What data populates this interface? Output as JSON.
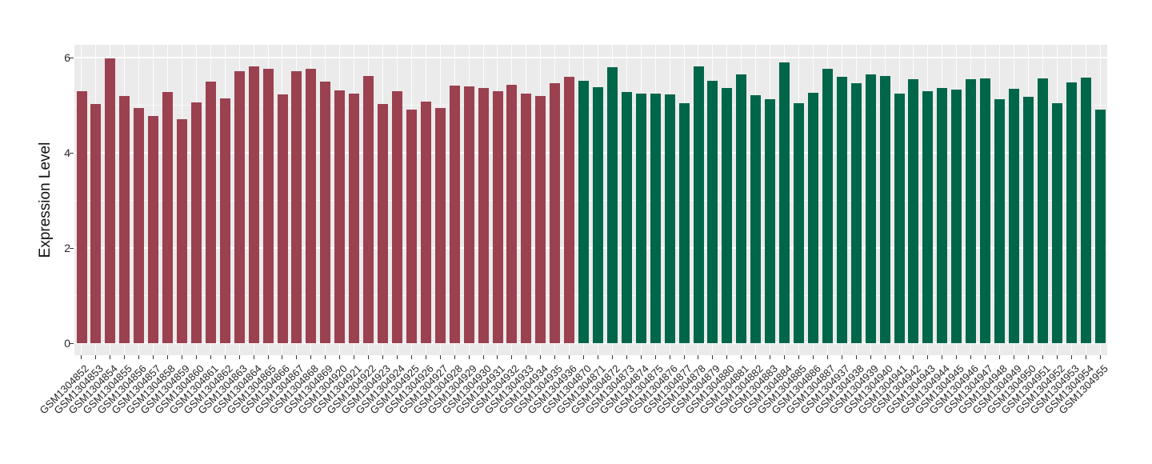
{
  "chart_data": {
    "type": "bar",
    "title": "",
    "xlabel": "",
    "ylabel": "Expression Level",
    "ylim": [
      0,
      6.3
    ],
    "yticks": [
      0,
      2,
      4,
      6
    ],
    "ytick_labels": [
      "0",
      "2",
      "4",
      "6"
    ],
    "minor_yticks": [
      1,
      3,
      5
    ],
    "grid": "on",
    "legend": "none",
    "panel_background": "#ebebeb",
    "grid_color": "#ffffff",
    "tick_color": "#333333",
    "text_color": "#262626",
    "groups": [
      {
        "name": "group-1-red",
        "color": "#9b4150",
        "count": 35
      },
      {
        "name": "group-2-green",
        "color": "#00664a",
        "count": 37
      }
    ],
    "categories": [
      "GSM1304852",
      "GSM1304853",
      "GSM1304854",
      "GSM1304855",
      "GSM1304856",
      "GSM1304857",
      "GSM1304858",
      "GSM1304859",
      "GSM1304860",
      "GSM1304861",
      "GSM1304862",
      "GSM1304863",
      "GSM1304864",
      "GSM1304865",
      "GSM1304866",
      "GSM1304867",
      "GSM1304868",
      "GSM1304869",
      "GSM1304920",
      "GSM1304921",
      "GSM1304922",
      "GSM1304923",
      "GSM1304924",
      "GSM1304925",
      "GSM1304926",
      "GSM1304927",
      "GSM1304928",
      "GSM1304929",
      "GSM1304930",
      "GSM1304931",
      "GSM1304932",
      "GSM1304933",
      "GSM1304934",
      "GSM1304935",
      "GSM1304936",
      "GSM1304870",
      "GSM1304871",
      "GSM1304872",
      "GSM1304873",
      "GSM1304874",
      "GSM1304875",
      "GSM1304876",
      "GSM1304877",
      "GSM1304878",
      "GSM1304879",
      "GSM1304880",
      "GSM1304881",
      "GSM1304882",
      "GSM1304883",
      "GSM1304884",
      "GSM1304885",
      "GSM1304886",
      "GSM1304887",
      "GSM1304937",
      "GSM1304938",
      "GSM1304939",
      "GSM1304940",
      "GSM1304941",
      "GSM1304942",
      "GSM1304943",
      "GSM1304944",
      "GSM1304945",
      "GSM1304946",
      "GSM1304947",
      "GSM1304948",
      "GSM1304949",
      "GSM1304950",
      "GSM1304951",
      "GSM1304952",
      "GSM1304953",
      "GSM1304954",
      "GSM1304955"
    ],
    "values": [
      5.29,
      5.03,
      5.98,
      5.2,
      4.94,
      4.77,
      5.28,
      4.71,
      5.06,
      5.5,
      5.15,
      5.71,
      5.81,
      5.76,
      5.22,
      5.72,
      5.76,
      5.49,
      5.31,
      5.24,
      5.62,
      5.03,
      5.29,
      4.91,
      5.07,
      4.94,
      5.42,
      5.39,
      5.36,
      5.3,
      5.43,
      5.25,
      5.19,
      5.46,
      5.59,
      5.51,
      5.38,
      5.8,
      5.28,
      5.24,
      5.25,
      5.22,
      5.04,
      5.82,
      5.51,
      5.37,
      5.64,
      5.21,
      5.12,
      5.9,
      5.04,
      5.26,
      5.76,
      5.6,
      5.46,
      5.65,
      5.62,
      5.25,
      5.54,
      5.29,
      5.36,
      5.33,
      5.55,
      5.56,
      5.12,
      5.35,
      5.18,
      5.57,
      5.04,
      5.48,
      5.58,
      4.9
    ]
  }
}
